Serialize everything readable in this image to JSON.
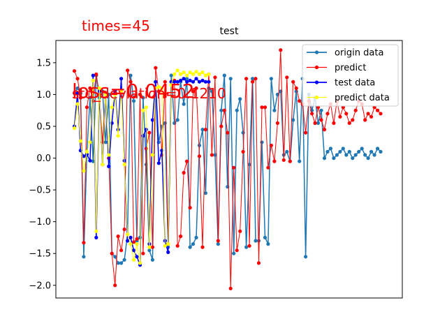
{
  "chart_data": {
    "type": "line",
    "title": "test",
    "annotations": {
      "times": "times=45",
      "loss": "loss=0.0452",
      "std": "std_deviation=0.1210"
    },
    "ylim": [
      -2.2,
      1.85
    ],
    "yticks": [
      -2.0,
      -1.5,
      -1.0,
      -0.5,
      0.0,
      0.5,
      1.0,
      1.5
    ],
    "ytick_labels": [
      "−2.0",
      "−1.5",
      "−1.0",
      "−0.5",
      "0.0",
      "0.5",
      "1.0",
      "1.5"
    ],
    "xlim": [
      -1,
      100
    ],
    "legend_position": "top-right",
    "colors": {
      "origin": "#1f77b4",
      "predict": "#ff0000",
      "test": "#0000ff",
      "predict_data": "#ffff00"
    },
    "series": [
      {
        "name": "origin data",
        "x": [
          0,
          1,
          2,
          3,
          4,
          5,
          6,
          7,
          8,
          9,
          10,
          11,
          12,
          13,
          14,
          15,
          16,
          17,
          18,
          19,
          20,
          21,
          22,
          23,
          24,
          25,
          26,
          27,
          28,
          29,
          30,
          31,
          32,
          33,
          34,
          35,
          36,
          37,
          38,
          39,
          40,
          41,
          42,
          43,
          44,
          45,
          46,
          47,
          48,
          49,
          50,
          51,
          52,
          53,
          54,
          55,
          56,
          57,
          58,
          59,
          60,
          61,
          62,
          63,
          64,
          65,
          66,
          67,
          68,
          69,
          70,
          71,
          72,
          73,
          74,
          75,
          76,
          77,
          78,
          79,
          80,
          81,
          82,
          83,
          84,
          85,
          86,
          87,
          88,
          89,
          90,
          91,
          92,
          93,
          94,
          95,
          96,
          97,
          98
        ],
        "values": [
          1.02,
          1.1,
          1.02,
          -1.55,
          0.1,
          0.95,
          -0.05,
          1.3,
          0.95,
          1.05,
          0.25,
          1.0,
          -1.5,
          -1.55,
          -1.65,
          -1.65,
          -1.6,
          -1.2,
          1.3,
          0.9,
          -1.3,
          -1.25,
          0.95,
          -0.1,
          -1.45,
          -1.6,
          1.2,
          0.25,
          0.5,
          0.55,
          -1.4,
          1.3,
          0.55,
          0.6,
          1.2,
          0.85,
          1.25,
          -1.4,
          -1.35,
          -1.25,
          0.2,
          0.45,
          -0.55,
          1.1,
          1.05,
          0.05,
          -1.35,
          0.75,
          1.3,
          -0.45,
          1.25,
          -1.5,
          0.75,
          0.93,
          0.4,
          -1.4,
          -0.1,
          1.25,
          -1.3,
          -1.3,
          0.25,
          -1.25,
          -1.35,
          1.25,
          0.75,
          1.0,
          1.05,
          0.05,
          0.1,
          -0.05,
          0.6,
          1.05,
          -0.05,
          1.25,
          -1.55,
          1.0,
          0.75,
          0.95,
          0.55,
          0.75,
          0.0,
          0.1,
          0.15,
          0.0,
          0.05,
          0.1,
          0.15,
          0.05,
          0.1,
          0.0,
          0.05,
          0.1,
          0.15,
          0.05,
          0.0,
          0.1,
          0.05,
          0.15,
          0.1
        ]
      },
      {
        "name": "predict",
        "x": [
          0,
          1,
          2,
          3,
          4,
          5,
          6,
          7,
          8,
          9,
          10,
          11,
          12,
          13,
          14,
          15,
          16,
          17,
          18,
          19,
          20,
          21,
          22,
          23,
          24,
          25,
          26,
          27,
          28,
          29,
          30,
          31,
          32,
          33,
          34,
          35,
          36,
          37,
          38,
          39,
          40,
          41,
          42,
          43,
          44,
          45,
          46,
          47,
          48,
          49,
          50,
          51,
          52,
          53,
          54,
          55,
          56,
          57,
          58,
          59,
          60,
          61,
          62,
          63,
          64,
          65,
          66,
          67,
          68,
          69,
          70,
          71,
          72,
          73,
          74,
          75,
          76,
          77,
          78,
          79,
          80,
          81,
          82,
          83,
          84,
          85,
          86,
          87,
          88,
          89,
          90,
          91,
          92,
          93,
          94,
          95,
          96,
          97,
          98
        ],
        "values": [
          1.37,
          1.25,
          0.95,
          -1.33,
          0.8,
          1.1,
          0.9,
          1.32,
          1.0,
          0.25,
          1.0,
          0.0,
          -1.5,
          -2.0,
          -1.23,
          -1.45,
          -1.12,
          1.38,
          1.2,
          -1.32,
          -1.27,
          1.0,
          -1.5,
          0.15,
          0.4,
          -1.4,
          1.42,
          1.05,
          0.05,
          1.2,
          -1.35,
          1.2,
          1.22,
          -1.38,
          -1.23,
          -0.23,
          -0.05,
          -0.78,
          1.05,
          1.1,
          0.03,
          -1.4,
          0.45,
          1.32,
          0.05,
          1.27,
          -1.3,
          0.5,
          0.75,
          0.4,
          -2.05,
          -0.15,
          -1.45,
          -1.15,
          0.1,
          1.25,
          -1.38,
          1.2,
          1.25,
          -1.65,
          0.8,
          0.8,
          -0.15,
          0.2,
          -0.05,
          0.55,
          1.7,
          -0.03,
          1.27,
          -0.05,
          1.2,
          1.1,
          0.9,
          0.85,
          0.4,
          0.9,
          0.7,
          0.55,
          0.8,
          0.6,
          0.45,
          0.7,
          0.85,
          0.55,
          0.9,
          0.65,
          0.8,
          0.7,
          0.55,
          0.6,
          0.75,
          0.9,
          0.85,
          0.6,
          0.7,
          0.65,
          0.8,
          0.75,
          0.7
        ]
      },
      {
        "name": "test data",
        "x": [
          0,
          1,
          2,
          3,
          4,
          5,
          6,
          7,
          8,
          9,
          10,
          11,
          12,
          13,
          14,
          15,
          16,
          17,
          18,
          19,
          20,
          21,
          22,
          23,
          24,
          25,
          26,
          27,
          28,
          29,
          30,
          31,
          32,
          33,
          34,
          35,
          36,
          37,
          38,
          39,
          40,
          41,
          42,
          43
        ],
        "values": [
          0.5,
          1.02,
          0.12,
          0.03,
          0.06,
          -0.04,
          1.3,
          -1.25,
          1.05,
          -0.1,
          1.0,
          -0.13,
          0.55,
          1.05,
          0.45,
          1.25,
          -0.04,
          -1.3,
          -1.25,
          -1.45,
          -1.55,
          -1.68,
          0.35,
          0.45,
          -1.35,
          0.6,
          1.2,
          -0.08,
          0.12,
          -1.3,
          -1.48,
          1.2,
          1.2,
          1.2,
          1.22,
          1.25,
          1.2,
          1.22,
          1.2,
          1.25,
          1.2,
          1.22,
          1.2,
          1.2
        ]
      },
      {
        "name": "predict data",
        "x": [
          0,
          1,
          2,
          3,
          4,
          5,
          6,
          7,
          8,
          9,
          10,
          11,
          12,
          13,
          14,
          15,
          16,
          17,
          18,
          19,
          20,
          21,
          22,
          23,
          24,
          25,
          26,
          27,
          28,
          29,
          30,
          31,
          32,
          33,
          34,
          35,
          36,
          37,
          38,
          39,
          40,
          41,
          42,
          43
        ],
        "values": [
          0.47,
          0.85,
          0.27,
          -0.2,
          0.1,
          0.25,
          1.22,
          -1.15,
          1.1,
          -0.1,
          1.0,
          0.05,
          0.8,
          1.0,
          0.35,
          1.05,
          -0.1,
          -1.2,
          -1.35,
          -1.6,
          -1.35,
          -1.65,
          0.75,
          0.8,
          -1.4,
          0.05,
          1.1,
          1.12,
          1.1,
          -1.38,
          -1.35,
          1.15,
          1.32,
          1.38,
          1.32,
          1.35,
          1.3,
          1.35,
          1.32,
          1.36,
          1.32,
          1.35,
          1.3,
          1.32
        ]
      }
    ]
  }
}
